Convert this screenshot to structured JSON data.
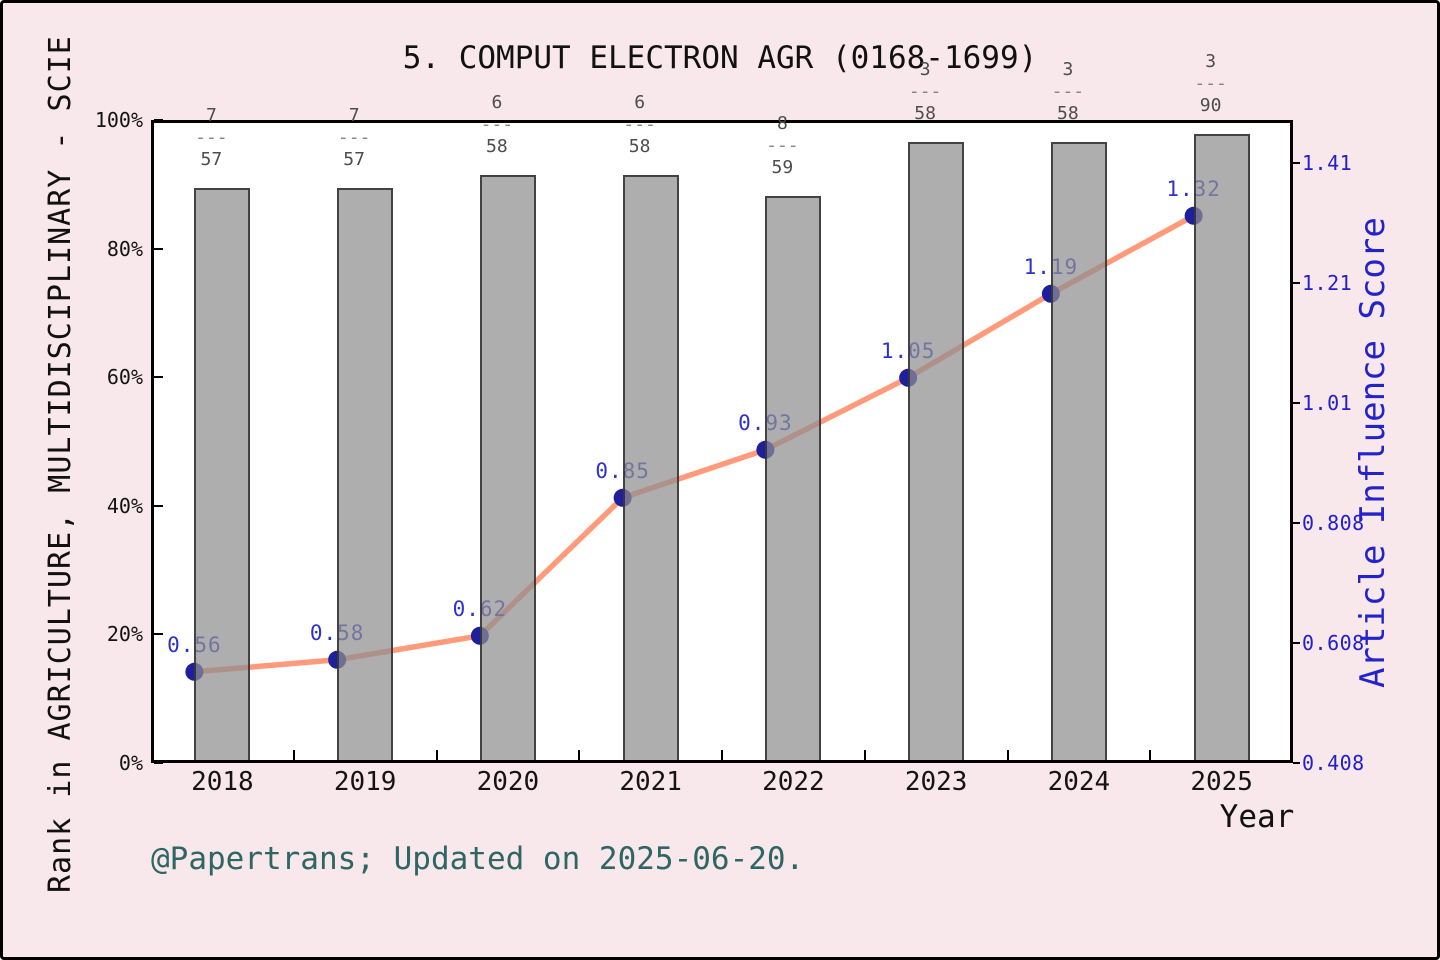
{
  "figure": {
    "title": "5. COMPUT ELECTRON AGR (0168-1699)",
    "footer": "@Papertrans; Updated on 2025-06-20."
  },
  "left_axis": {
    "label": "Rank in AGRICULTURE, MULTIDISCIPLINARY - SCIE",
    "tick_labels": [
      "100%",
      "80%",
      "60%",
      "40%",
      "20%",
      "0%"
    ],
    "tick_percents": [
      100,
      80,
      60,
      40,
      20,
      0
    ]
  },
  "right_axis": {
    "label": "Article Influence Score",
    "tick_labels": [
      "1.41",
      "1.21",
      "1.01",
      "0.808",
      "0.608",
      "0.408"
    ],
    "tick_values": [
      1.408,
      1.208,
      1.008,
      0.808,
      0.608,
      0.408
    ]
  },
  "x_axis": {
    "label": "Year",
    "categories": [
      "2018",
      "2019",
      "2020",
      "2021",
      "2022",
      "2023",
      "2024",
      "2025"
    ]
  },
  "chart_data": {
    "type": "bar+line",
    "title": "5. COMPUT ELECTRON AGR (0168-1699)",
    "categories": [
      "2018",
      "2019",
      "2020",
      "2021",
      "2022",
      "2023",
      "2024",
      "2025"
    ],
    "bar_series": {
      "name": "Rank in AGRICULTURE, MULTIDISCIPLINARY - SCIE",
      "axis": "left",
      "fractions": [
        {
          "rank": "7",
          "total": "57"
        },
        {
          "rank": "7",
          "total": "57"
        },
        {
          "rank": "6",
          "total": "58"
        },
        {
          "rank": "6",
          "total": "58"
        },
        {
          "rank": "8",
          "total": "59"
        },
        {
          "rank": "3",
          "total": "58"
        },
        {
          "rank": "3",
          "total": "58"
        },
        {
          "rank": "3",
          "total": "90"
        }
      ],
      "heights_pct": [
        89.47,
        89.47,
        91.38,
        91.38,
        88.14,
        96.55,
        96.55,
        97.78
      ],
      "note": "bar height = (total - rank + 1) / total"
    },
    "line_series": {
      "name": "Article Influence Score",
      "axis": "right",
      "values": [
        0.56,
        0.58,
        0.62,
        0.85,
        0.93,
        1.05,
        1.19,
        1.32
      ],
      "labels": [
        "0.56",
        "0.58",
        "0.62",
        "0.85",
        "0.93",
        "1.05",
        "1.19",
        "1.32"
      ]
    },
    "left_axis_range_pct": [
      0,
      100
    ],
    "right_axis_range": [
      0.408,
      1.48
    ],
    "grid": false,
    "legend": "none",
    "dash_glyph": "---"
  },
  "colors": {
    "figure_bg": "#f8e7eb",
    "plot_bg": "#ffffff",
    "bar_fill": "rgba(143,143,143,0.72)",
    "bar_edge": "rgba(40,40,40,0.80)",
    "line": "#ff9b7b",
    "marker": "#1f1f9e",
    "value_label": "#3030d0",
    "right_axis_text": "#2020cc",
    "left_axis_text": "#141414",
    "footer_text": "#2e6663",
    "fraction_text": "#4d4d4d",
    "fraction_dash": "#858585"
  }
}
